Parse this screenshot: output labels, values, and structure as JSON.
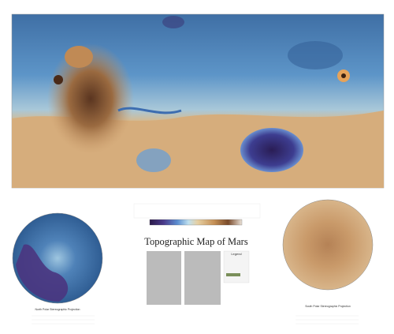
{
  "header": {
    "title": "Topographic Map of Mars"
  },
  "legend": {
    "title": "Legend"
  },
  "captions": {
    "north": "North Polar Stereographic Projection",
    "south": "South Polar Stereographic Projection"
  }
}
